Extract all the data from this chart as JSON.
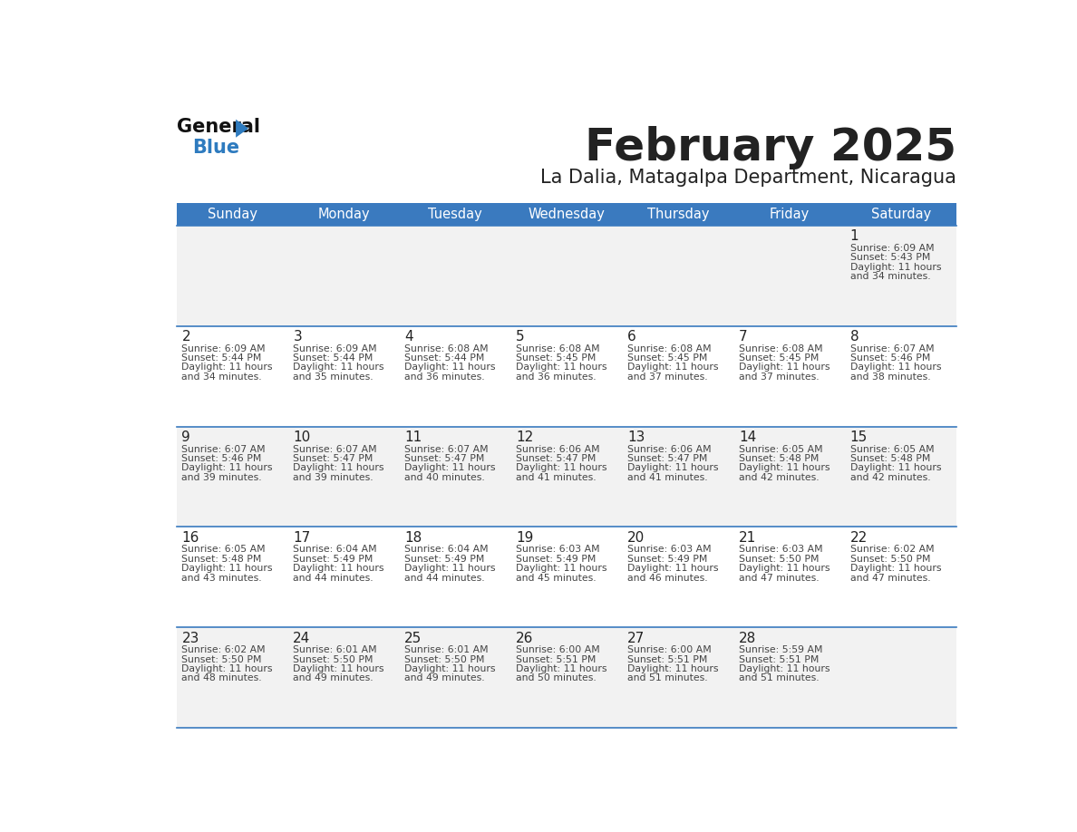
{
  "title": "February 2025",
  "subtitle": "La Dalia, Matagalpa Department, Nicaragua",
  "header_color": "#3a7abf",
  "header_text_color": "#ffffff",
  "days_of_week": [
    "Sunday",
    "Monday",
    "Tuesday",
    "Wednesday",
    "Thursday",
    "Friday",
    "Saturday"
  ],
  "line_color": "#3a7abf",
  "text_color": "#222222",
  "cell_text_color": "#444444",
  "calendar": [
    [
      null,
      null,
      null,
      null,
      null,
      null,
      1
    ],
    [
      2,
      3,
      4,
      5,
      6,
      7,
      8
    ],
    [
      9,
      10,
      11,
      12,
      13,
      14,
      15
    ],
    [
      16,
      17,
      18,
      19,
      20,
      21,
      22
    ],
    [
      23,
      24,
      25,
      26,
      27,
      28,
      null
    ]
  ],
  "day_data": {
    "1": {
      "sunrise": "6:09 AM",
      "sunset": "5:43 PM",
      "daylight_hours": 11,
      "daylight_minutes": 34
    },
    "2": {
      "sunrise": "6:09 AM",
      "sunset": "5:44 PM",
      "daylight_hours": 11,
      "daylight_minutes": 34
    },
    "3": {
      "sunrise": "6:09 AM",
      "sunset": "5:44 PM",
      "daylight_hours": 11,
      "daylight_minutes": 35
    },
    "4": {
      "sunrise": "6:08 AM",
      "sunset": "5:44 PM",
      "daylight_hours": 11,
      "daylight_minutes": 36
    },
    "5": {
      "sunrise": "6:08 AM",
      "sunset": "5:45 PM",
      "daylight_hours": 11,
      "daylight_minutes": 36
    },
    "6": {
      "sunrise": "6:08 AM",
      "sunset": "5:45 PM",
      "daylight_hours": 11,
      "daylight_minutes": 37
    },
    "7": {
      "sunrise": "6:08 AM",
      "sunset": "5:45 PM",
      "daylight_hours": 11,
      "daylight_minutes": 37
    },
    "8": {
      "sunrise": "6:07 AM",
      "sunset": "5:46 PM",
      "daylight_hours": 11,
      "daylight_minutes": 38
    },
    "9": {
      "sunrise": "6:07 AM",
      "sunset": "5:46 PM",
      "daylight_hours": 11,
      "daylight_minutes": 39
    },
    "10": {
      "sunrise": "6:07 AM",
      "sunset": "5:47 PM",
      "daylight_hours": 11,
      "daylight_minutes": 39
    },
    "11": {
      "sunrise": "6:07 AM",
      "sunset": "5:47 PM",
      "daylight_hours": 11,
      "daylight_minutes": 40
    },
    "12": {
      "sunrise": "6:06 AM",
      "sunset": "5:47 PM",
      "daylight_hours": 11,
      "daylight_minutes": 41
    },
    "13": {
      "sunrise": "6:06 AM",
      "sunset": "5:47 PM",
      "daylight_hours": 11,
      "daylight_minutes": 41
    },
    "14": {
      "sunrise": "6:05 AM",
      "sunset": "5:48 PM",
      "daylight_hours": 11,
      "daylight_minutes": 42
    },
    "15": {
      "sunrise": "6:05 AM",
      "sunset": "5:48 PM",
      "daylight_hours": 11,
      "daylight_minutes": 42
    },
    "16": {
      "sunrise": "6:05 AM",
      "sunset": "5:48 PM",
      "daylight_hours": 11,
      "daylight_minutes": 43
    },
    "17": {
      "sunrise": "6:04 AM",
      "sunset": "5:49 PM",
      "daylight_hours": 11,
      "daylight_minutes": 44
    },
    "18": {
      "sunrise": "6:04 AM",
      "sunset": "5:49 PM",
      "daylight_hours": 11,
      "daylight_minutes": 44
    },
    "19": {
      "sunrise": "6:03 AM",
      "sunset": "5:49 PM",
      "daylight_hours": 11,
      "daylight_minutes": 45
    },
    "20": {
      "sunrise": "6:03 AM",
      "sunset": "5:49 PM",
      "daylight_hours": 11,
      "daylight_minutes": 46
    },
    "21": {
      "sunrise": "6:03 AM",
      "sunset": "5:50 PM",
      "daylight_hours": 11,
      "daylight_minutes": 47
    },
    "22": {
      "sunrise": "6:02 AM",
      "sunset": "5:50 PM",
      "daylight_hours": 11,
      "daylight_minutes": 47
    },
    "23": {
      "sunrise": "6:02 AM",
      "sunset": "5:50 PM",
      "daylight_hours": 11,
      "daylight_minutes": 48
    },
    "24": {
      "sunrise": "6:01 AM",
      "sunset": "5:50 PM",
      "daylight_hours": 11,
      "daylight_minutes": 49
    },
    "25": {
      "sunrise": "6:01 AM",
      "sunset": "5:50 PM",
      "daylight_hours": 11,
      "daylight_minutes": 49
    },
    "26": {
      "sunrise": "6:00 AM",
      "sunset": "5:51 PM",
      "daylight_hours": 11,
      "daylight_minutes": 50
    },
    "27": {
      "sunrise": "6:00 AM",
      "sunset": "5:51 PM",
      "daylight_hours": 11,
      "daylight_minutes": 51
    },
    "28": {
      "sunrise": "5:59 AM",
      "sunset": "5:51 PM",
      "daylight_hours": 11,
      "daylight_minutes": 51
    }
  },
  "logo_general_color": "#111111",
  "logo_blue_color": "#2e7bbf",
  "logo_triangle_color": "#2e7bbf"
}
